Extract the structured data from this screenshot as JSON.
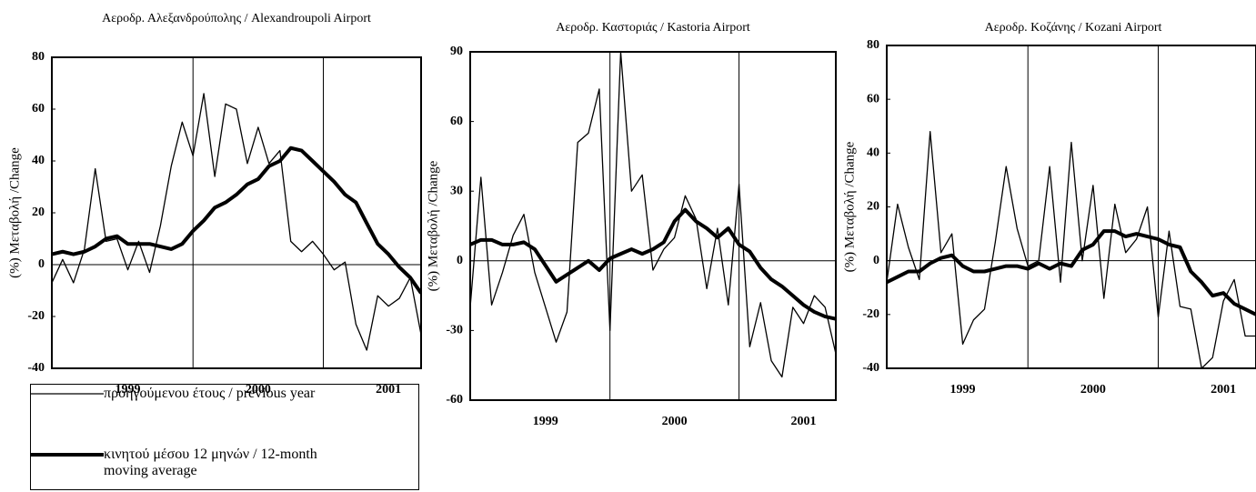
{
  "chart_data": [
    {
      "type": "line",
      "title": "Αεροδρ. Αλεξανδρούπολης / Alexandroupoli Airport",
      "y_label": "(%) Μεταβολή /Change",
      "x": [
        1998.917,
        1999,
        1999.083,
        1999.167,
        1999.25,
        1999.333,
        1999.417,
        1999.5,
        1999.583,
        1999.667,
        1999.75,
        1999.833,
        1999.917,
        2000,
        2000.083,
        2000.167,
        2000.25,
        2000.333,
        2000.417,
        2000.5,
        2000.583,
        2000.667,
        2000.75,
        2000.833,
        2000.917,
        2001,
        2001.083,
        2001.167,
        2001.25,
        2001.333,
        2001.417,
        2001.5,
        2001.583,
        2001.667,
        2001.75
      ],
      "xlim": [
        1998.917,
        2001.75
      ],
      "xticks": [
        {
          "value": 1999.5,
          "label": "1999"
        },
        {
          "value": 2000.5,
          "label": "2000"
        },
        {
          "value": 2001.5,
          "label": "2001"
        }
      ],
      "vlines": [
        2000,
        2001
      ],
      "ylim": [
        -40,
        80
      ],
      "yticks": [
        -40,
        -20,
        0,
        20,
        40,
        60,
        80
      ],
      "zero_line": true,
      "series": [
        {
          "name": "προηγούμενου έτους / previous year",
          "color": "#000000",
          "width": 1.3,
          "values": [
            -7,
            2,
            -7,
            6,
            37,
            9,
            10,
            -2,
            9,
            -3,
            15,
            38,
            55,
            42,
            66,
            34,
            62,
            60,
            39,
            53,
            39,
            44,
            9,
            5,
            9,
            4,
            -2,
            1,
            -23,
            -33,
            -12,
            -16,
            -13,
            -5,
            -27
          ]
        },
        {
          "name": "κινητού μέσου 12 μηνών / 12-month moving average",
          "color": "#000000",
          "width": 4,
          "values": [
            4,
            5,
            4,
            5,
            7,
            10,
            11,
            8,
            8,
            8,
            7,
            6,
            8,
            13,
            17,
            22,
            24,
            27,
            31,
            33,
            38,
            40,
            45,
            44,
            40,
            36,
            32,
            27,
            24,
            16,
            8,
            4,
            -1,
            -5,
            -11
          ]
        }
      ]
    },
    {
      "type": "line",
      "title": "Αεροδρ. Καστοριάς / Kastoria Airport",
      "y_label": "(%) Μεταβολή /Change",
      "x": [
        1998.917,
        1999,
        1999.083,
        1999.167,
        1999.25,
        1999.333,
        1999.417,
        1999.5,
        1999.583,
        1999.667,
        1999.75,
        1999.833,
        1999.917,
        2000,
        2000.083,
        2000.167,
        2000.25,
        2000.333,
        2000.417,
        2000.5,
        2000.583,
        2000.667,
        2000.75,
        2000.833,
        2000.917,
        2001,
        2001.083,
        2001.167,
        2001.25,
        2001.333,
        2001.417,
        2001.5,
        2001.583,
        2001.667,
        2001.75
      ],
      "xlim": [
        1998.917,
        2001.75
      ],
      "xticks": [
        {
          "value": 1999.5,
          "label": "1999"
        },
        {
          "value": 2000.5,
          "label": "2000"
        },
        {
          "value": 2001.5,
          "label": "2001"
        }
      ],
      "vlines": [
        2000,
        2001
      ],
      "ylim": [
        -60,
        90
      ],
      "yticks": [
        -60,
        -30,
        0,
        30,
        60,
        90
      ],
      "zero_line": true,
      "series": [
        {
          "color": "#000000",
          "width": 1.3,
          "values": [
            -20,
            36,
            -19,
            -5,
            11,
            20,
            -5,
            -20,
            -35,
            -22,
            51,
            55,
            74,
            -30,
            90,
            30,
            37,
            -4,
            5,
            10,
            28,
            18,
            -12,
            14,
            -19,
            33,
            -37,
            -18,
            -43,
            -50,
            -20,
            -27,
            -15,
            -20,
            -40
          ]
        },
        {
          "color": "#000000",
          "width": 4,
          "values": [
            7,
            9,
            9,
            7,
            7,
            8,
            5,
            -2,
            -9,
            -6,
            -3,
            0,
            -4,
            1,
            3,
            5,
            3,
            5,
            8,
            17,
            22,
            17,
            14,
            10,
            14,
            7,
            4,
            -3,
            -8,
            -11,
            -15,
            -19,
            -22,
            -24,
            -25
          ]
        }
      ]
    },
    {
      "type": "line",
      "title": "Αεροδρ. Κοζάνης / Kozani Airport",
      "y_label": "(%) Μεταβολή /Change",
      "x": [
        1998.917,
        1999,
        1999.083,
        1999.167,
        1999.25,
        1999.333,
        1999.417,
        1999.5,
        1999.583,
        1999.667,
        1999.75,
        1999.833,
        1999.917,
        2000,
        2000.083,
        2000.167,
        2000.25,
        2000.333,
        2000.417,
        2000.5,
        2000.583,
        2000.667,
        2000.75,
        2000.833,
        2000.917,
        2001,
        2001.083,
        2001.167,
        2001.25,
        2001.333,
        2001.417,
        2001.5,
        2001.583,
        2001.667,
        2001.75
      ],
      "xlim": [
        1998.917,
        2001.75
      ],
      "xticks": [
        {
          "value": 1999.5,
          "label": "1999"
        },
        {
          "value": 2000.5,
          "label": "2000"
        },
        {
          "value": 2001.5,
          "label": "2001"
        }
      ],
      "vlines": [
        2000,
        2001
      ],
      "ylim": [
        -40,
        80
      ],
      "yticks": [
        -40,
        -20,
        0,
        20,
        40,
        60,
        80
      ],
      "zero_line": true,
      "series": [
        {
          "color": "#000000",
          "width": 1.3,
          "values": [
            -8,
            21,
            5,
            -7,
            48,
            3,
            10,
            -31,
            -22,
            -18,
            7,
            35,
            12,
            -2,
            0,
            35,
            -8,
            44,
            0,
            28,
            -14,
            21,
            3,
            8,
            20,
            -21,
            11,
            -17,
            -18,
            -40,
            -36,
            -15,
            -7,
            -28,
            -28
          ]
        },
        {
          "color": "#000000",
          "width": 4,
          "values": [
            -8,
            -6,
            -4,
            -4,
            -1,
            1,
            2,
            -2,
            -4,
            -4,
            -3,
            -2,
            -2,
            -3,
            -1,
            -3,
            -1,
            -2,
            4,
            6,
            11,
            11,
            9,
            10,
            9,
            8,
            6,
            5,
            -4,
            -8,
            -13,
            -12,
            -16,
            -18,
            -20
          ]
        }
      ]
    }
  ]
}
